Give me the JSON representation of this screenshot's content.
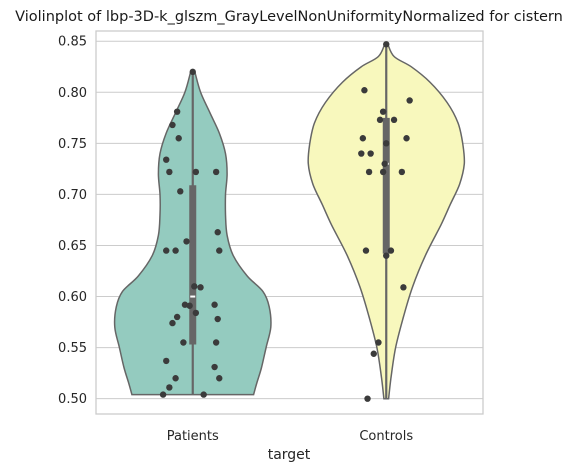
{
  "chart_data": {
    "type": "violin",
    "title": "Violinplot of lbp-3D-k_glszm_GrayLevelNonUniformityNormalized for cistern",
    "xlabel": "target",
    "ylabel": "",
    "ylim": [
      0.485,
      0.86
    ],
    "yticks": [
      "0.50",
      "0.55",
      "0.60",
      "0.65",
      "0.70",
      "0.75",
      "0.80",
      "0.85"
    ],
    "grid": true,
    "categories": [
      "Patients",
      "Controls"
    ],
    "colors": {
      "Patients": "#94cbbf",
      "Controls": "#f8f8bd",
      "points": "#3b3b3b",
      "outline": "#666666"
    },
    "groups": [
      {
        "name": "Patients",
        "min": 0.504,
        "q1": 0.553,
        "median": 0.6,
        "q3": 0.709,
        "max": 0.819,
        "density_profile": [
          [
            0.504,
            0.78
          ],
          [
            0.51,
            0.72
          ],
          [
            0.52,
            0.62
          ],
          [
            0.535,
            0.5
          ],
          [
            0.55,
            0.36
          ],
          [
            0.565,
            0.22
          ],
          [
            0.58,
            0.04
          ],
          [
            0.6,
            0.1
          ],
          [
            0.62,
            0.3
          ],
          [
            0.64,
            0.46
          ],
          [
            0.66,
            0.58
          ],
          [
            0.68,
            0.6
          ],
          [
            0.7,
            0.58
          ],
          [
            0.72,
            0.52
          ],
          [
            0.74,
            0.42
          ],
          [
            0.76,
            0.28
          ],
          [
            0.78,
            0.14
          ],
          [
            0.8,
            0.06
          ],
          [
            0.819,
            0.03
          ]
        ],
        "density_max_width_value": 1.0,
        "density_right": [
          [
            0.504,
            0.22
          ],
          [
            0.51,
            0.28
          ],
          [
            0.52,
            0.38
          ],
          [
            0.535,
            0.5
          ],
          [
            0.55,
            0.64
          ],
          [
            0.565,
            0.78
          ],
          [
            0.58,
            0.94
          ],
          [
            0.6,
            0.9
          ],
          [
            0.62,
            0.7
          ],
          [
            0.64,
            0.54
          ],
          [
            0.66,
            0.42
          ],
          [
            0.68,
            0.4
          ],
          [
            0.7,
            0.42
          ],
          [
            0.72,
            0.48
          ],
          [
            0.74,
            0.58
          ],
          [
            0.76,
            0.72
          ],
          [
            0.78,
            0.86
          ],
          [
            0.8,
            0.94
          ],
          [
            0.819,
            0.97
          ]
        ],
        "points": [
          [
            0.819,
            0.82
          ],
          [
            -0.2,
            0.781
          ],
          [
            -0.26,
            0.768
          ],
          [
            -0.18,
            0.755
          ],
          [
            -0.34,
            0.734
          ],
          [
            -0.3,
            0.722
          ],
          [
            0.04,
            0.722
          ],
          [
            0.3,
            0.722
          ],
          [
            -0.16,
            0.703
          ],
          [
            0.32,
            0.663
          ],
          [
            -0.08,
            0.654
          ],
          [
            -0.34,
            0.645
          ],
          [
            -0.22,
            0.645
          ],
          [
            0.34,
            0.645
          ],
          [
            0.02,
            0.61
          ],
          [
            0.1,
            0.609
          ],
          [
            -0.1,
            0.592
          ],
          [
            0.28,
            0.592
          ],
          [
            -0.04,
            0.591
          ],
          [
            0.04,
            0.584
          ],
          [
            -0.2,
            0.58
          ],
          [
            0.32,
            0.578
          ],
          [
            -0.26,
            0.574
          ],
          [
            -0.12,
            0.555
          ],
          [
            0.3,
            0.555
          ],
          [
            -0.34,
            0.537
          ],
          [
            0.28,
            0.531
          ],
          [
            -0.22,
            0.52
          ],
          [
            0.34,
            0.52
          ],
          [
            -0.3,
            0.511
          ],
          [
            -0.38,
            0.504
          ],
          [
            0.14,
            0.504
          ]
        ]
      },
      {
        "name": "Controls",
        "min": 0.5,
        "q1": 0.642,
        "median": 0.73,
        "q3": 0.775,
        "max": 0.847,
        "points": [
          [
            0.0,
            0.847
          ],
          [
            -0.28,
            0.802
          ],
          [
            0.3,
            0.792
          ],
          [
            -0.04,
            0.781
          ],
          [
            -0.08,
            0.773
          ],
          [
            0.1,
            0.773
          ],
          [
            -0.3,
            0.755
          ],
          [
            0.26,
            0.755
          ],
          [
            0.0,
            0.75
          ],
          [
            -0.32,
            0.74
          ],
          [
            -0.2,
            0.74
          ],
          [
            -0.02,
            0.73
          ],
          [
            -0.22,
            0.722
          ],
          [
            -0.04,
            0.722
          ],
          [
            0.2,
            0.722
          ],
          [
            -0.26,
            0.645
          ],
          [
            0.06,
            0.645
          ],
          [
            0.0,
            0.64
          ],
          [
            0.22,
            0.609
          ],
          [
            -0.1,
            0.555
          ],
          [
            -0.16,
            0.544
          ],
          [
            -0.24,
            0.5
          ]
        ]
      }
    ]
  }
}
